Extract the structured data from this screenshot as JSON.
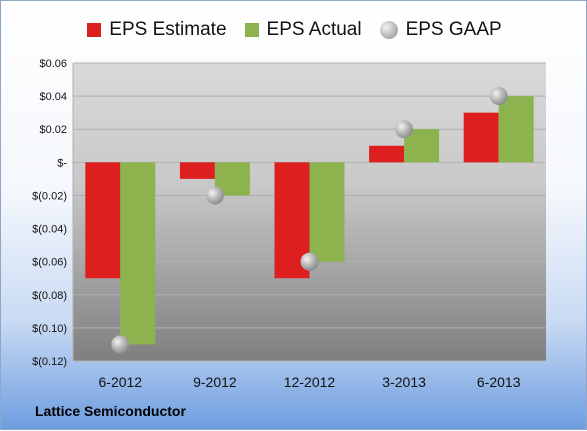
{
  "chart_data": {
    "type": "bar",
    "categories": [
      "6-2012",
      "9-2012",
      "12-2012",
      "3-2013",
      "6-2013"
    ],
    "series": [
      {
        "name": "EPS Estimate",
        "values": [
          -0.07,
          -0.01,
          -0.07,
          0.01,
          0.03
        ],
        "color": "#dd1f1f",
        "kind": "bar"
      },
      {
        "name": "EPS Actual",
        "values": [
          -0.11,
          -0.02,
          -0.06,
          0.02,
          0.04
        ],
        "color": "#8cb34e",
        "kind": "bar"
      },
      {
        "name": "EPS GAAP",
        "values": [
          -0.11,
          -0.02,
          -0.06,
          0.02,
          0.04
        ],
        "color": "#b0b0b0",
        "kind": "marker"
      }
    ],
    "ylim": [
      -0.12,
      0.06
    ],
    "yticks": [
      0.06,
      0.04,
      0.02,
      0,
      -0.02,
      -0.04,
      -0.06,
      -0.08,
      -0.1,
      -0.12
    ],
    "ytick_labels": [
      "$0.06",
      "$0.04",
      "$0.02",
      "$-",
      "$(0.02)",
      "$(0.04)",
      "$(0.06)",
      "$(0.08)",
      "$(0.10)",
      "$(0.12)"
    ],
    "grid": true,
    "legend_position": "top"
  },
  "footer": {
    "company": "Lattice Semiconductor"
  }
}
